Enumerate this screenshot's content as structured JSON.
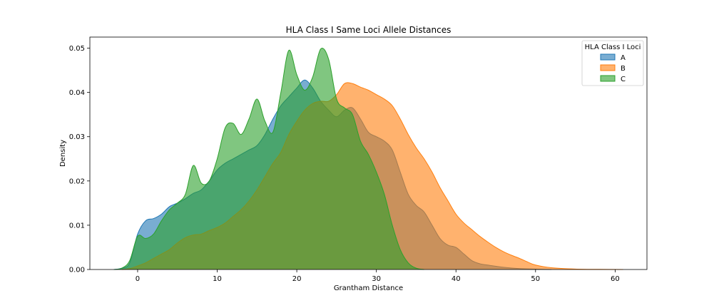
{
  "chart_data": {
    "type": "area",
    "title": "HLA Class I Same Loci Allele Distances",
    "xlabel": "Grantham Distance",
    "ylabel": "Density",
    "xlim": [
      -6,
      64
    ],
    "ylim": [
      0,
      0.0525
    ],
    "xticks": [
      0,
      10,
      20,
      30,
      40,
      50,
      60
    ],
    "xtick_labels": [
      "0",
      "10",
      "20",
      "30",
      "40",
      "50",
      "60"
    ],
    "yticks": [
      0,
      0.01,
      0.02,
      0.03,
      0.04,
      0.05
    ],
    "ytick_labels": [
      "0.00",
      "0.01",
      "0.02",
      "0.03",
      "0.04",
      "0.05"
    ],
    "grid": false,
    "legend": {
      "title": "HLA Class I Loci",
      "placement": "upper right",
      "entries": [
        "A",
        "B",
        "C"
      ]
    },
    "series": [
      {
        "name": "A",
        "color": "#1f77b4",
        "fill_opacity": 0.6,
        "points": [
          [
            -3,
            0
          ],
          [
            -2,
            0.0003
          ],
          [
            -1,
            0.0015
          ],
          [
            0,
            0.008
          ],
          [
            1,
            0.011
          ],
          [
            2,
            0.0115
          ],
          [
            3,
            0.0125
          ],
          [
            4,
            0.0142
          ],
          [
            5,
            0.015
          ],
          [
            6,
            0.016
          ],
          [
            7,
            0.0172
          ],
          [
            8,
            0.018
          ],
          [
            9,
            0.02
          ],
          [
            10,
            0.0225
          ],
          [
            11,
            0.024
          ],
          [
            12,
            0.025
          ],
          [
            13,
            0.026
          ],
          [
            14,
            0.027
          ],
          [
            15,
            0.028
          ],
          [
            16,
            0.0305
          ],
          [
            17,
            0.034
          ],
          [
            18,
            0.037
          ],
          [
            19,
            0.039
          ],
          [
            20,
            0.041
          ],
          [
            21,
            0.0428
          ],
          [
            22,
            0.041
          ],
          [
            23,
            0.038
          ],
          [
            24,
            0.036
          ],
          [
            25,
            0.0345
          ],
          [
            26,
            0.036
          ],
          [
            27,
            0.0365
          ],
          [
            28,
            0.034
          ],
          [
            29,
            0.031
          ],
          [
            30,
            0.03
          ],
          [
            31,
            0.029
          ],
          [
            32,
            0.027
          ],
          [
            33,
            0.022
          ],
          [
            34,
            0.017
          ],
          [
            35,
            0.0145
          ],
          [
            36,
            0.013
          ],
          [
            37,
            0.01
          ],
          [
            38,
            0.007
          ],
          [
            39,
            0.0055
          ],
          [
            40,
            0.005
          ],
          [
            41,
            0.0035
          ],
          [
            42,
            0.002
          ],
          [
            43,
            0.0013
          ],
          [
            44,
            0.001
          ],
          [
            46,
            0.0005
          ],
          [
            48,
            0.0002
          ],
          [
            50,
            0.0001
          ],
          [
            52,
            0
          ]
        ]
      },
      {
        "name": "B",
        "color": "#ff7f0e",
        "fill_opacity": 0.6,
        "points": [
          [
            -2,
            0
          ],
          [
            -1,
            0.0002
          ],
          [
            0,
            0.0008
          ],
          [
            1,
            0.0015
          ],
          [
            2,
            0.0025
          ],
          [
            3,
            0.0035
          ],
          [
            4,
            0.0045
          ],
          [
            5,
            0.006
          ],
          [
            6,
            0.0072
          ],
          [
            7,
            0.0078
          ],
          [
            8,
            0.008
          ],
          [
            9,
            0.0088
          ],
          [
            10,
            0.0095
          ],
          [
            11,
            0.0105
          ],
          [
            12,
            0.012
          ],
          [
            13,
            0.0135
          ],
          [
            14,
            0.0155
          ],
          [
            15,
            0.018
          ],
          [
            16,
            0.021
          ],
          [
            17,
            0.024
          ],
          [
            18,
            0.0265
          ],
          [
            19,
            0.0305
          ],
          [
            20,
            0.0335
          ],
          [
            21,
            0.036
          ],
          [
            22,
            0.0375
          ],
          [
            23,
            0.038
          ],
          [
            24,
            0.038
          ],
          [
            25,
            0.0395
          ],
          [
            26,
            0.042
          ],
          [
            27,
            0.042
          ],
          [
            28,
            0.0412
          ],
          [
            29,
            0.0405
          ],
          [
            30,
            0.0395
          ],
          [
            31,
            0.0385
          ],
          [
            32,
            0.037
          ],
          [
            33,
            0.034
          ],
          [
            34,
            0.0305
          ],
          [
            35,
            0.0275
          ],
          [
            36,
            0.025
          ],
          [
            37,
            0.022
          ],
          [
            38,
            0.0185
          ],
          [
            39,
            0.0155
          ],
          [
            40,
            0.0125
          ],
          [
            41,
            0.0105
          ],
          [
            42,
            0.009
          ],
          [
            43,
            0.0075
          ],
          [
            44,
            0.0062
          ],
          [
            45,
            0.005
          ],
          [
            46,
            0.004
          ],
          [
            47,
            0.0032
          ],
          [
            48,
            0.0025
          ],
          [
            49,
            0.0017
          ],
          [
            50,
            0.001
          ],
          [
            52,
            0.0004
          ],
          [
            55,
            0.0001
          ],
          [
            58,
            3e-05
          ],
          [
            61,
            0
          ]
        ]
      },
      {
        "name": "C",
        "color": "#2ca02c",
        "fill_opacity": 0.6,
        "points": [
          [
            -3,
            0
          ],
          [
            -2,
            0.0003
          ],
          [
            -1,
            0.002
          ],
          [
            0,
            0.0075
          ],
          [
            1,
            0.007
          ],
          [
            2,
            0.008
          ],
          [
            3,
            0.011
          ],
          [
            4,
            0.0135
          ],
          [
            5,
            0.015
          ],
          [
            6,
            0.017
          ],
          [
            7,
            0.0235
          ],
          [
            8,
            0.0195
          ],
          [
            9,
            0.02
          ],
          [
            10,
            0.025
          ],
          [
            11,
            0.032
          ],
          [
            12,
            0.033
          ],
          [
            13,
            0.0305
          ],
          [
            14,
            0.034
          ],
          [
            15,
            0.0385
          ],
          [
            16,
            0.0335
          ],
          [
            17,
            0.031
          ],
          [
            18,
            0.04
          ],
          [
            19,
            0.0495
          ],
          [
            20,
            0.044
          ],
          [
            21,
            0.0405
          ],
          [
            22,
            0.0435
          ],
          [
            23,
            0.0498
          ],
          [
            24,
            0.0475
          ],
          [
            25,
            0.0385
          ],
          [
            26,
            0.0365
          ],
          [
            27,
            0.035
          ],
          [
            28,
            0.029
          ],
          [
            29,
            0.026
          ],
          [
            30,
            0.022
          ],
          [
            31,
            0.017
          ],
          [
            32,
            0.01
          ],
          [
            33,
            0.0045
          ],
          [
            34,
            0.0015
          ],
          [
            35,
            0.0003
          ],
          [
            36,
            0
          ]
        ]
      }
    ]
  }
}
